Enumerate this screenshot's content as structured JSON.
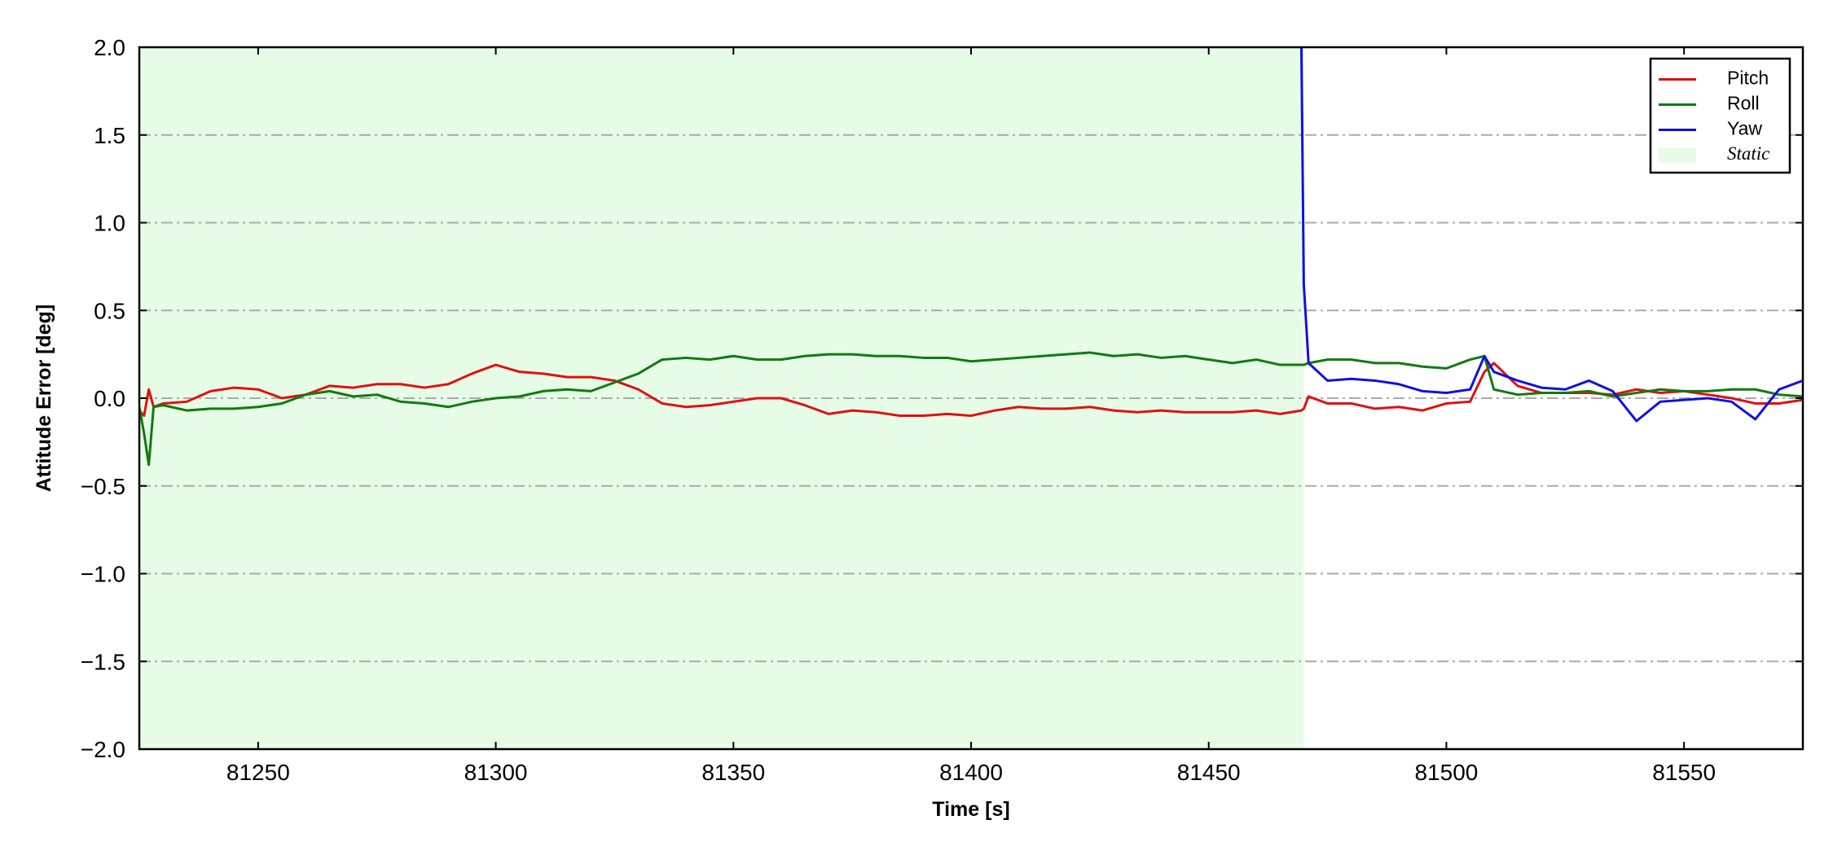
{
  "chart_data": {
    "type": "line",
    "x_label": "Time [s]",
    "y_label": "Attitude Error [deg]",
    "xlim": [
      81225,
      81575
    ],
    "ylim": [
      -2,
      2
    ],
    "xticks": [
      81250,
      81300,
      81350,
      81400,
      81450,
      81500,
      81550
    ],
    "yticks": [
      {
        "value": -2,
        "label": "−2.0"
      },
      {
        "value": -1.5,
        "label": "−1.5"
      },
      {
        "value": -1,
        "label": "−1.0"
      },
      {
        "value": -0.5,
        "label": "−0.5"
      },
      {
        "value": 0,
        "label": "0.0"
      },
      0.5,
      {
        "value": 1,
        "label": "1.0"
      },
      1.5,
      {
        "value": 2,
        "label": "2.0"
      }
    ],
    "grid": true,
    "legend": "upper right",
    "spans": [
      {
        "name": "Static",
        "x0": 81225,
        "x1": 81470,
        "color": "#e6fce6"
      }
    ],
    "x": [
      81225,
      81226,
      81227,
      81228,
      81230,
      81235,
      81240,
      81245,
      81250,
      81255,
      81260,
      81265,
      81270,
      81275,
      81280,
      81285,
      81290,
      81295,
      81300,
      81305,
      81310,
      81315,
      81320,
      81325,
      81330,
      81335,
      81340,
      81345,
      81350,
      81355,
      81360,
      81365,
      81370,
      81375,
      81380,
      81385,
      81390,
      81395,
      81400,
      81405,
      81410,
      81415,
      81420,
      81425,
      81430,
      81435,
      81440,
      81445,
      81450,
      81455,
      81460,
      81465,
      81469.5,
      81470,
      81471,
      81475,
      81480,
      81485,
      81490,
      81495,
      81500,
      81505,
      81508,
      81510,
      81515,
      81520,
      81525,
      81530,
      81535,
      81540,
      81545,
      81550,
      81555,
      81560,
      81565,
      81570,
      81575
    ],
    "series": [
      {
        "name": "Pitch",
        "color": "#e01010",
        "values": [
          -0.07,
          -0.1,
          0.05,
          -0.05,
          -0.03,
          -0.02,
          0.04,
          0.06,
          0.05,
          0.0,
          0.02,
          0.07,
          0.06,
          0.08,
          0.08,
          0.06,
          0.08,
          0.14,
          0.19,
          0.15,
          0.14,
          0.12,
          0.12,
          0.1,
          0.05,
          -0.03,
          -0.05,
          -0.04,
          -0.02,
          0.0,
          0.0,
          -0.04,
          -0.09,
          -0.07,
          -0.08,
          -0.1,
          -0.1,
          -0.09,
          -0.1,
          -0.07,
          -0.05,
          -0.06,
          -0.06,
          -0.05,
          -0.07,
          -0.08,
          -0.07,
          -0.08,
          -0.08,
          -0.08,
          -0.07,
          -0.09,
          -0.07,
          -0.06,
          0.01,
          -0.03,
          -0.03,
          -0.06,
          -0.05,
          -0.07,
          -0.03,
          -0.02,
          0.15,
          0.2,
          0.07,
          0.03,
          0.03,
          0.03,
          0.02,
          0.05,
          0.03,
          0.04,
          0.02,
          0.0,
          -0.03,
          -0.03,
          -0.01
        ]
      },
      {
        "name": "Roll",
        "color": "#107a10",
        "values": [
          -0.05,
          -0.2,
          -0.38,
          -0.05,
          -0.04,
          -0.07,
          -0.06,
          -0.06,
          -0.05,
          -0.03,
          0.02,
          0.04,
          0.01,
          0.02,
          -0.02,
          -0.03,
          -0.05,
          -0.02,
          0.0,
          0.01,
          0.04,
          0.05,
          0.04,
          0.09,
          0.14,
          0.22,
          0.23,
          0.22,
          0.24,
          0.22,
          0.22,
          0.24,
          0.25,
          0.25,
          0.24,
          0.24,
          0.23,
          0.23,
          0.21,
          0.22,
          0.23,
          0.24,
          0.25,
          0.26,
          0.24,
          0.25,
          0.23,
          0.24,
          0.22,
          0.2,
          0.22,
          0.19,
          0.19,
          0.19,
          0.2,
          0.22,
          0.22,
          0.2,
          0.2,
          0.18,
          0.17,
          0.22,
          0.24,
          0.05,
          0.02,
          0.03,
          0.03,
          0.04,
          0.01,
          0.03,
          0.05,
          0.04,
          0.04,
          0.05,
          0.05,
          0.02,
          0.01
        ]
      },
      {
        "name": "Yaw",
        "color": "#1010e0",
        "values": [
          null,
          null,
          null,
          null,
          null,
          null,
          null,
          null,
          null,
          null,
          null,
          null,
          null,
          null,
          null,
          null,
          null,
          null,
          null,
          null,
          null,
          null,
          null,
          null,
          null,
          null,
          null,
          null,
          null,
          null,
          null,
          null,
          null,
          null,
          null,
          null,
          null,
          null,
          null,
          null,
          null,
          null,
          null,
          null,
          null,
          null,
          null,
          null,
          null,
          null,
          null,
          null,
          2.0,
          0.65,
          0.2,
          0.1,
          0.11,
          0.1,
          0.08,
          0.04,
          0.03,
          0.05,
          0.24,
          0.15,
          0.1,
          0.06,
          0.05,
          0.1,
          0.04,
          -0.13,
          -0.02,
          -0.01,
          0.0,
          -0.02,
          -0.12,
          0.05,
          0.1
        ]
      }
    ]
  }
}
